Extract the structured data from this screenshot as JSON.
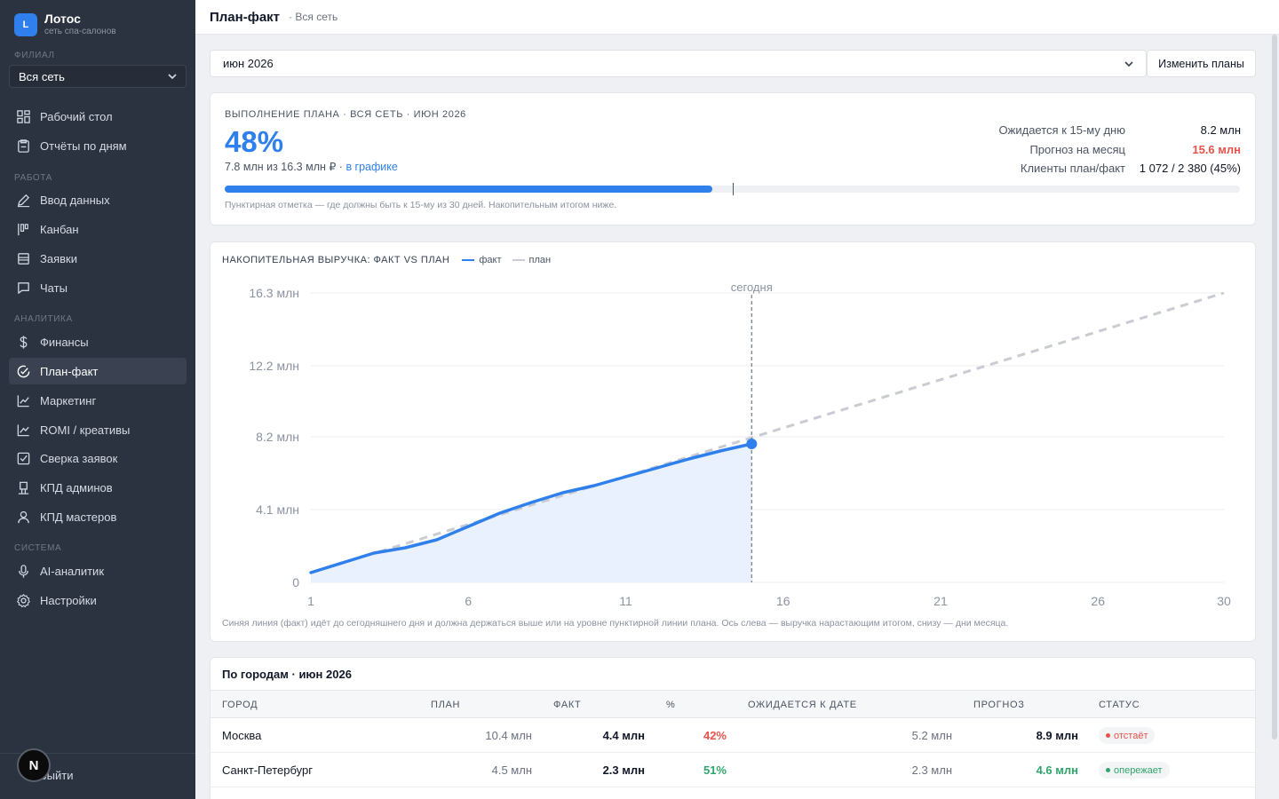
{
  "brand": {
    "logo": "L",
    "title": "Лотос",
    "subtitle": "сеть спа-салонов"
  },
  "sidebar": {
    "branch_label": "ФИЛИАЛ",
    "branch_value": "Вся сеть",
    "sections": {
      "work": "РАБОТА",
      "analytics": "АНАЛИТИКА",
      "system": "СИСТЕМА"
    },
    "items": {
      "dashboard": "Рабочий стол",
      "daily_reports": "Отчёты по дням",
      "data_entry": "Ввод данных",
      "kanban": "Канбан",
      "requests": "Заявки",
      "chats": "Чаты",
      "finance": "Финансы",
      "plan_fact": "План-факт",
      "marketing": "Маркетинг",
      "romi": "ROMI / креативы",
      "reconcile": "Сверка заявок",
      "kpd_admins": "КПД админов",
      "kpd_masters": "КПД мастеров",
      "ai": "AI-аналитик",
      "settings": "Настройки"
    },
    "next_badge": "N",
    "logout": "Выйти"
  },
  "header": {
    "title": "План-факт",
    "subtitle": "· Вся сеть"
  },
  "controls": {
    "month": "июн 2026",
    "edit_button": "Изменить планы"
  },
  "kpi": {
    "label": "ВЫПОЛНЕНИЕ ПЛАНА · ВСЯ СЕТЬ · ИЮН 2026",
    "percent": "48%",
    "summary": "7.8 млн из 16.3 млн ₽ · ",
    "summary_link": "в графике",
    "progress_fraction": 0.48,
    "expected_mark_fraction": 0.5,
    "stats": [
      {
        "key": "Ожидается к 15-му дню",
        "value": "8.2 млн"
      },
      {
        "key": "Прогноз на месяц",
        "value": "15.6 млн"
      },
      {
        "key": "Клиенты план/факт",
        "value": "1 072 / 2 380 (45%)"
      }
    ],
    "note": "Пунктирная отметка — где должны быть к 15-му из 30 дней. Накопительным итогом ниже."
  },
  "chart_data": {
    "type": "line",
    "title": "НАКОПИТЕЛЬНАЯ ВЫРУЧКА: ФАКТ VS ПЛАН",
    "legend": {
      "fact": "факт",
      "plan": "план"
    },
    "today_label": "сегодня",
    "today_day": 15,
    "xlim": [
      1,
      30
    ],
    "ylim": [
      0,
      16.3
    ],
    "x_ticks": [
      "1",
      "6",
      "11",
      "16",
      "21",
      "26",
      "30"
    ],
    "y_ticks": [
      {
        "value": 0,
        "label": "0"
      },
      {
        "value": 4.1,
        "label": "4.1 млн"
      },
      {
        "value": 8.2,
        "label": "8.2 млн"
      },
      {
        "value": 12.2,
        "label": "12.2 млн"
      },
      {
        "value": 16.3,
        "label": "16.3 млн"
      }
    ],
    "series": [
      {
        "name": "факт",
        "color": "#2f80ed",
        "x": [
          1,
          2,
          3,
          4,
          5,
          6,
          7,
          8,
          9,
          10,
          11,
          12,
          13,
          14,
          15
        ],
        "y": [
          0.55,
          1.1,
          1.65,
          1.95,
          2.4,
          3.15,
          3.9,
          4.5,
          5.05,
          5.45,
          5.95,
          6.45,
          6.95,
          7.4,
          7.8
        ]
      },
      {
        "name": "план",
        "color": "#c9ccd2",
        "x": [
          1,
          30
        ],
        "y": [
          0.55,
          16.3
        ]
      }
    ],
    "note": "Синяя линия (факт) идёт до сегодняшнего дня и должна держаться выше или на уровне пунктирной линии плана. Ось слева — выручка нарастающим итогом, снизу — дни месяца."
  },
  "table": {
    "title": "По городам · июн 2026",
    "headers": {
      "city": "ГОРОД",
      "plan": "ПЛАН",
      "fact": "ФАКТ",
      "pct": "%",
      "expected": "ОЖИДАЕТСЯ К ДАТЕ",
      "forecast": "ПРОГНОЗ",
      "status": "СТАТУС"
    },
    "rows": [
      {
        "city": "Москва",
        "plan": "10.4 млн",
        "fact": "4.4 млн",
        "pct": "42%",
        "pct_tone": "red",
        "expected": "5.2 млн",
        "forecast": "8.9 млн",
        "forecast_tone": "normal",
        "status": "отстаёт",
        "status_tone": "lag"
      },
      {
        "city": "Санкт-Петербург",
        "plan": "4.5 млн",
        "fact": "2.3 млн",
        "pct": "51%",
        "pct_tone": "green",
        "expected": "2.3 млн",
        "forecast": "4.6 млн",
        "forecast_tone": "green",
        "status": "опережает",
        "status_tone": "ahead"
      }
    ]
  },
  "colors": {
    "accent": "#2f80ed",
    "danger": "#e5534b",
    "success": "#2fa56a",
    "sidebar": "#2b3240"
  }
}
